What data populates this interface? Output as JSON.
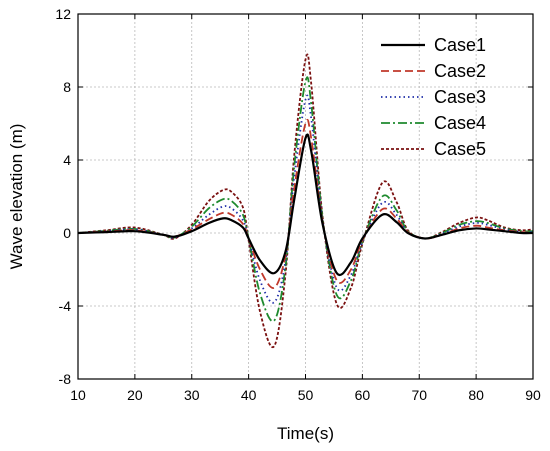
{
  "chart_data": {
    "type": "line",
    "title": "",
    "xlabel": "Time(s)",
    "ylabel": "Wave elevation (m)",
    "xlim": [
      10,
      90
    ],
    "ylim": [
      -8,
      12
    ],
    "xticks": [
      10,
      20,
      30,
      40,
      50,
      60,
      70,
      80,
      90
    ],
    "yticks": [
      -8,
      -4,
      0,
      4,
      8,
      12
    ],
    "grid": true,
    "legend_position": "top-right",
    "x": [
      10,
      15,
      20,
      25,
      27,
      30,
      33,
      35.5,
      37,
      39,
      40,
      42,
      44.5,
      46.5,
      48,
      50,
      51,
      53,
      55.5,
      58,
      60,
      63.5,
      66,
      68,
      71,
      74,
      77,
      80,
      82,
      85,
      88,
      90
    ],
    "series": [
      {
        "name": "Case1",
        "color": "#000000",
        "dash": "solid",
        "values": [
          0,
          0.05,
          0.1,
          -0.1,
          -0.2,
          0.1,
          0.55,
          0.8,
          0.7,
          0.3,
          -0.3,
          -1.5,
          -2.2,
          -1.0,
          1.8,
          5.2,
          4.5,
          0.5,
          -2.2,
          -1.6,
          -0.3,
          1.0,
          0.6,
          0.0,
          -0.3,
          -0.1,
          0.15,
          0.25,
          0.2,
          0.1,
          0.0,
          0.0
        ]
      },
      {
        "name": "Case2",
        "color": "#c0392b",
        "dash": "dashed",
        "values": [
          0,
          0.08,
          0.15,
          -0.1,
          -0.2,
          0.2,
          0.75,
          1.1,
          1.0,
          0.5,
          -0.3,
          -2.0,
          -3.0,
          -1.2,
          2.4,
          6.0,
          5.2,
          0.6,
          -2.6,
          -2.0,
          -0.4,
          1.3,
          0.8,
          0.05,
          -0.3,
          -0.1,
          0.25,
          0.4,
          0.3,
          0.15,
          0.05,
          0.0
        ]
      },
      {
        "name": "Case3",
        "color": "#1f2ea8",
        "dash": "dotted",
        "values": [
          0,
          0.1,
          0.2,
          -0.1,
          -0.25,
          0.25,
          1.0,
          1.45,
          1.35,
          0.7,
          -0.3,
          -2.6,
          -3.8,
          -1.5,
          3.0,
          7.3,
          6.3,
          0.7,
          -3.0,
          -2.3,
          -0.5,
          1.65,
          1.0,
          0.05,
          -0.3,
          -0.05,
          0.35,
          0.55,
          0.45,
          0.2,
          0.05,
          0.05
        ]
      },
      {
        "name": "Case4",
        "color": "#1e8a2e",
        "dash": "dashdot",
        "values": [
          0,
          0.12,
          0.22,
          -0.1,
          -0.25,
          0.35,
          1.35,
          1.85,
          1.75,
          1.0,
          -0.3,
          -3.3,
          -4.8,
          -1.8,
          3.6,
          8.3,
          7.1,
          0.8,
          -3.4,
          -2.6,
          -0.5,
          2.0,
          1.25,
          0.1,
          -0.3,
          0.0,
          0.45,
          0.65,
          0.55,
          0.25,
          0.1,
          0.1
        ]
      },
      {
        "name": "Case5",
        "color": "#7a1010",
        "dash": "shortdash",
        "values": [
          0,
          0.15,
          0.3,
          -0.1,
          -0.3,
          0.45,
          1.75,
          2.35,
          2.25,
          1.4,
          -0.4,
          -4.3,
          -6.2,
          -2.2,
          4.2,
          9.5,
          8.2,
          0.9,
          -3.9,
          -3.0,
          -0.6,
          2.75,
          1.7,
          0.15,
          -0.3,
          0.05,
          0.55,
          0.85,
          0.7,
          0.3,
          0.15,
          0.2
        ]
      }
    ]
  }
}
